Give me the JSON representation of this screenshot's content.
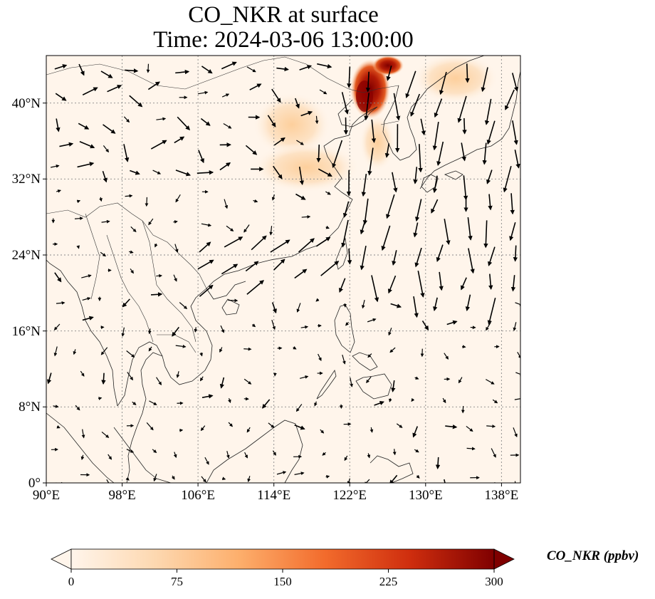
{
  "title": {
    "line1": "CO_NKR at surface",
    "line2": "Time: 2024-03-06 13:00:00"
  },
  "map": {
    "lon_range": [
      90,
      140
    ],
    "lat_range": [
      0,
      45
    ],
    "lon_ticks": [
      "90°E",
      "98°E",
      "106°E",
      "114°E",
      "122°E",
      "130°E",
      "138°E"
    ],
    "lat_ticks": [
      "0°",
      "8°N",
      "16°N",
      "24°N",
      "32°N",
      "40°N"
    ],
    "gridlines": true,
    "background_color": "#fff5eb"
  },
  "colorbar": {
    "label": "CO_NKR (ppbv)",
    "ticks": [
      "0",
      "75",
      "150",
      "225",
      "300"
    ],
    "range": [
      0,
      300
    ],
    "extend": "both",
    "colormap": [
      "#fff5eb",
      "#fdd8b0",
      "#fdac6b",
      "#f26b2c",
      "#cf2e0e",
      "#900000",
      "#7f0000"
    ]
  },
  "plumes": [
    {
      "name": "korea-bay-plume",
      "color": "#8b0000"
    },
    {
      "name": "yellow-sea-plume",
      "color": "#fdd9b0"
    },
    {
      "name": "north-china-plume",
      "color": "#fee6ce"
    }
  ]
}
